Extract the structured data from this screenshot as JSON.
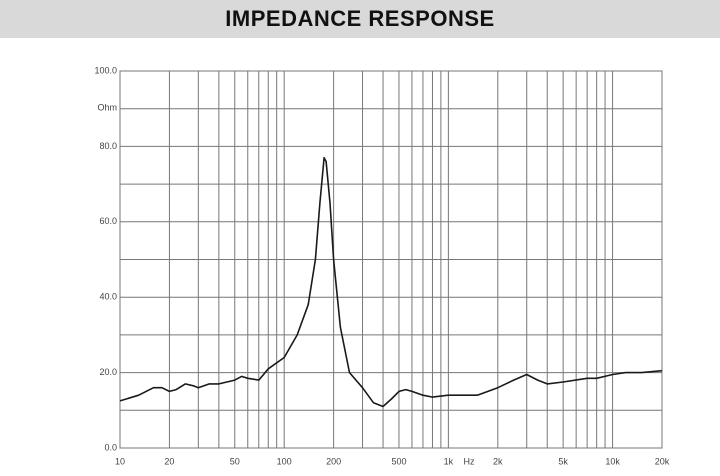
{
  "chart_data": {
    "type": "line",
    "title": "IMPEDANCE RESPONSE",
    "y_label": "Ohm",
    "x_label": "Hz",
    "xscale": "log",
    "grid": true,
    "x": [
      10,
      13,
      16,
      18,
      20,
      22,
      25,
      28,
      30,
      35,
      40,
      50,
      55,
      60,
      70,
      80,
      100,
      120,
      140,
      155,
      165,
      175,
      180,
      190,
      200,
      220,
      250,
      300,
      350,
      400,
      450,
      500,
      550,
      600,
      700,
      800,
      1000,
      1500,
      2000,
      2500,
      3000,
      3500,
      4000,
      5000,
      7000,
      8000,
      10000,
      12000,
      15000,
      20000
    ],
    "series": [
      {
        "name": "Impedance",
        "color": "#1a1a1a",
        "values": [
          12.5,
          14,
          16,
          16,
          15,
          15.5,
          17,
          16.5,
          16,
          17,
          17,
          18,
          19,
          18.5,
          18,
          21,
          24,
          30,
          38,
          50,
          65,
          77,
          76,
          65,
          50,
          32,
          20,
          16,
          12,
          11,
          13,
          15,
          15.5,
          15,
          14,
          13.5,
          14,
          14,
          16,
          18,
          19.5,
          18,
          17,
          17.5,
          18.5,
          18.5,
          19.5,
          20,
          20,
          20.5
        ]
      }
    ],
    "xlim": [
      10,
      20000
    ],
    "xticks": [
      10,
      20,
      50,
      100,
      200,
      500,
      {
        "value": 1000,
        "label": "1k"
      },
      {
        "value": 2000,
        "label": "2k"
      },
      {
        "value": 5000,
        "label": "5k"
      },
      {
        "value": 10000,
        "label": "10k"
      },
      {
        "value": 20000,
        "label": "20k"
      }
    ],
    "xminor": [
      30,
      40,
      60,
      70,
      80,
      90,
      300,
      400,
      600,
      700,
      800,
      900,
      3000,
      4000,
      6000,
      7000,
      8000,
      9000
    ],
    "ylim": [
      0,
      100
    ],
    "yticks": [
      {
        "value": 0,
        "label": "0.0"
      },
      {
        "value": 20,
        "label": "20.0"
      },
      {
        "value": 40,
        "label": "40.0"
      },
      {
        "value": 60,
        "label": "60.0"
      },
      {
        "value": 80,
        "label": "80.0"
      },
      {
        "value": 100,
        "label": "100.0"
      }
    ],
    "yminor": [
      10,
      30,
      50,
      70,
      90
    ]
  }
}
